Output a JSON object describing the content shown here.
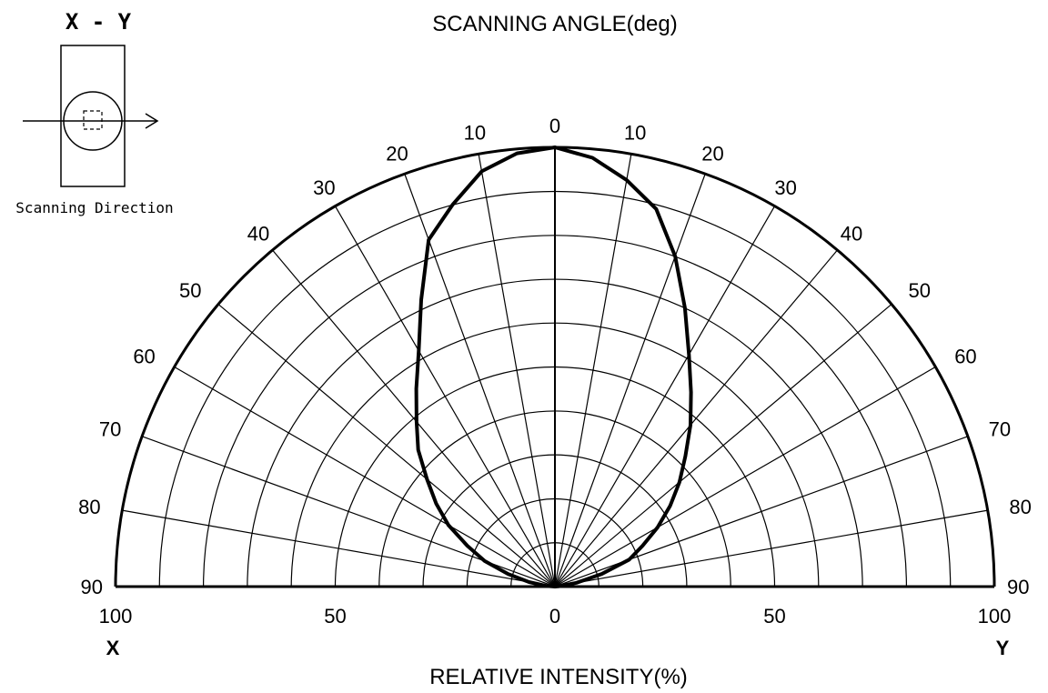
{
  "chart_data": {
    "type": "polar",
    "title": "SCANNING ANGLE(deg)",
    "xlabel": "RELATIVE INTENSITY(%)",
    "left_axis_letter": "X",
    "right_axis_letter": "Y",
    "angle_ticks": [
      0,
      10,
      20,
      30,
      40,
      50,
      60,
      70,
      80,
      90
    ],
    "angle_labels": [
      "0",
      "10",
      "20",
      "30",
      "40",
      "50",
      "60",
      "70",
      "80",
      "90"
    ],
    "radius_ticks": [
      100,
      50,
      0,
      50,
      100
    ],
    "radius_labels": [
      "100",
      "50",
      "0",
      "50",
      "100"
    ],
    "angle_range": [
      -90,
      90
    ],
    "radius_range": [
      0,
      100
    ],
    "grid": true,
    "series": [
      {
        "side": "X",
        "angles": [
          0,
          5,
          10,
          15,
          20,
          25,
          30,
          35,
          40,
          45,
          50,
          55,
          60,
          65,
          70,
          75,
          80,
          85,
          90
        ],
        "values": [
          100,
          99,
          96,
          90,
          84,
          72,
          62,
          55,
          49,
          44,
          38,
          33,
          28,
          22,
          17,
          11,
          6,
          2,
          0
        ]
      },
      {
        "side": "Y",
        "angles": [
          0,
          5,
          10,
          15,
          20,
          25,
          30,
          35,
          40,
          45,
          50,
          55,
          60,
          65,
          70,
          75,
          80,
          85,
          90
        ],
        "values": [
          100,
          98,
          94,
          89,
          80,
          70,
          61,
          54,
          48,
          42,
          37,
          32,
          27,
          22,
          18,
          11,
          5,
          1,
          0
        ]
      }
    ]
  },
  "inset": {
    "title": "X - Y",
    "caption": "Scanning Direction"
  },
  "colors": {
    "line": "#000000",
    "background": "#ffffff"
  }
}
